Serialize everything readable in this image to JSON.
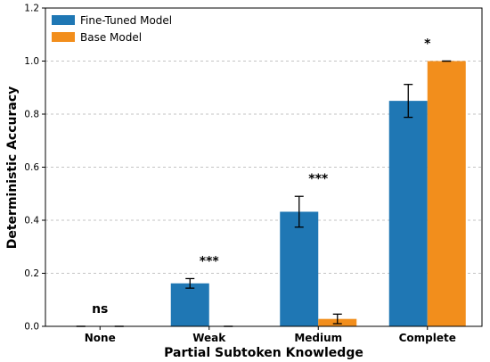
{
  "chart_data": {
    "type": "bar",
    "categories": [
      "None",
      "Weak",
      "Medium",
      "Complete"
    ],
    "series": [
      {
        "name": "Fine-Tuned Model",
        "color": "#1f77b4",
        "values": [
          0.0,
          0.162,
          0.432,
          0.85
        ],
        "errors": [
          0.0,
          0.018,
          0.058,
          0.062
        ]
      },
      {
        "name": "Base Model",
        "color": "#f28e1c",
        "values": [
          0.0,
          0.0,
          0.028,
          1.0
        ],
        "errors": [
          0.0,
          0.0,
          0.018,
          0.0
        ]
      }
    ],
    "significance": [
      "ns",
      "***",
      "***",
      "*"
    ],
    "xlabel": "Partial Subtoken Knowledge",
    "ylabel": "Deterministic Accuracy",
    "ylim": [
      0,
      1.2
    ],
    "yticks": [
      "0.0",
      "0.2",
      "0.4",
      "0.6",
      "0.8",
      "1.0",
      "1.2"
    ],
    "grid": "y-dashed",
    "legend_position": "top-left"
  }
}
